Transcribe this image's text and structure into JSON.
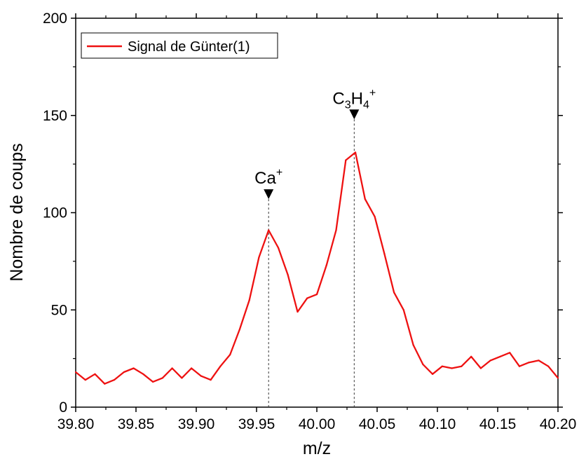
{
  "chart_data": {
    "type": "line",
    "xlabel": "m/z",
    "ylabel": "Nombre de coups",
    "xlim": [
      39.8,
      40.2
    ],
    "ylim": [
      0,
      200
    ],
    "xticks": [
      "39.80",
      "39.85",
      "39.90",
      "39.95",
      "40.00",
      "40.05",
      "40.10",
      "40.15",
      "40.20"
    ],
    "yticks": [
      "0",
      "50",
      "100",
      "150",
      "200"
    ],
    "grid": false,
    "legend_position": "top-left",
    "series": [
      {
        "name": "Signal de Günter(1)",
        "color": "#ee1111",
        "x": [
          39.8,
          39.808,
          39.816,
          39.824,
          39.832,
          39.84,
          39.848,
          39.856,
          39.864,
          39.872,
          39.88,
          39.888,
          39.896,
          39.904,
          39.912,
          39.92,
          39.928,
          39.936,
          39.944,
          39.952,
          39.96,
          39.968,
          39.976,
          39.984,
          39.992,
          40.0,
          40.008,
          40.016,
          40.024,
          40.032,
          40.04,
          40.048,
          40.056,
          40.064,
          40.072,
          40.08,
          40.088,
          40.096,
          40.104,
          40.112,
          40.12,
          40.128,
          40.136,
          40.144,
          40.152,
          40.16,
          40.168,
          40.176,
          40.184,
          40.192,
          40.2
        ],
        "y": [
          18,
          14,
          17,
          12,
          14,
          18,
          20,
          17,
          13,
          15,
          20,
          15,
          20,
          16,
          14,
          21,
          27,
          40,
          55,
          77,
          91,
          82,
          68,
          49,
          56,
          58,
          73,
          91,
          127,
          131,
          107,
          98,
          79,
          59,
          50,
          32,
          22,
          17,
          21,
          20,
          21,
          26,
          20,
          24,
          26,
          28,
          21,
          23,
          24,
          21,
          15
        ]
      }
    ],
    "annotations": [
      {
        "x": 39.96,
        "y": 107,
        "label": "Ca",
        "sub": "",
        "sup": "+"
      },
      {
        "x": 40.031,
        "y": 148,
        "label": "C",
        "sub": "3",
        "label2": "H",
        "sub2": "4",
        "sup": "+"
      }
    ]
  }
}
